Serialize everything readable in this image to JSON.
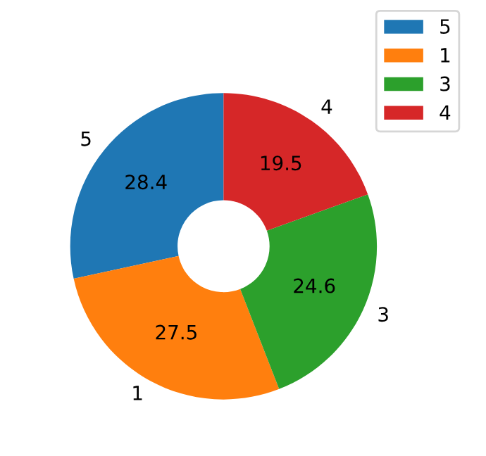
{
  "chart_data": {
    "type": "donut",
    "categories": [
      "5",
      "1",
      "3",
      "4"
    ],
    "values": [
      28.4,
      27.5,
      24.6,
      19.5
    ],
    "colors": [
      "#1f77b4",
      "#ff7f0e",
      "#2ca02c",
      "#d62728"
    ],
    "data_labels": true,
    "legend": "top right"
  }
}
